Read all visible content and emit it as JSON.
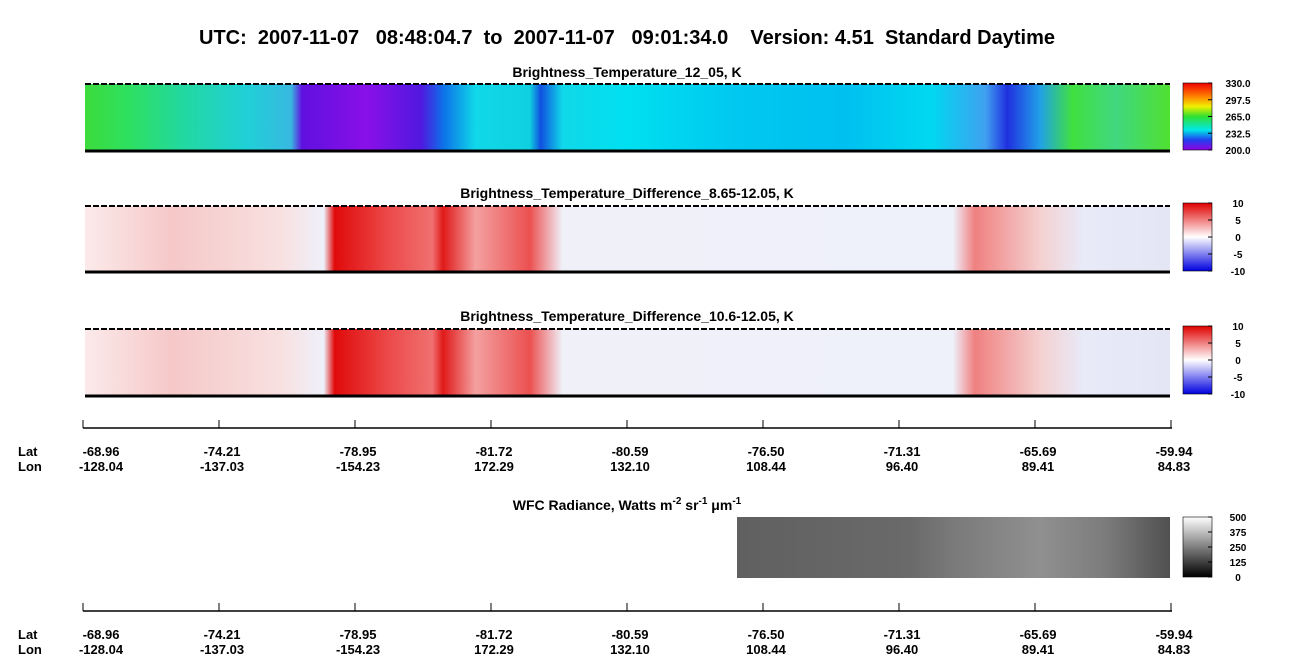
{
  "title": "UTC:  2007-11-07   08:48:04.7  to  2007-11-07   09:01:34.0    Version: 4.51  Standard Daytime",
  "panels": [
    {
      "title": "Brightness_Temperature_12_05, K",
      "clim": [
        200,
        330
      ],
      "cticks": [
        {
          "value": 330,
          "label": "330.0"
        },
        {
          "value": 297.5,
          "label": "297.5"
        },
        {
          "value": 265,
          "label": "265.0"
        },
        {
          "value": 232.5,
          "label": "232.5"
        },
        {
          "value": 200,
          "label": "200.0"
        }
      ]
    },
    {
      "title": "Brightness_Temperature_Difference_8.65-12.05, K",
      "clim": [
        -10,
        10
      ],
      "cticks": [
        10,
        5,
        0,
        -5,
        -10
      ]
    },
    {
      "title": "Brightness_Temperature_Difference_10.6-12.05, K",
      "clim": [
        -10,
        10
      ],
      "cticks": [
        10,
        5,
        0,
        -5,
        -10
      ]
    },
    {
      "title_parts": [
        "WFC Radiance, Watts m",
        "-2",
        " sr",
        "-1",
        " μm",
        "-1"
      ],
      "clim": [
        0,
        500
      ],
      "cticks": [
        500,
        375,
        250,
        125,
        0
      ]
    }
  ],
  "axes": [
    {
      "lat_label": "Lat",
      "lon_label": "Lon",
      "lat": [
        "-68.96",
        "-74.21",
        "-78.95",
        "-81.72",
        "-80.59",
        "-76.50",
        "-71.31",
        "-65.69",
        "-59.94"
      ],
      "lon": [
        "-128.04",
        "-137.03",
        "-154.23",
        "172.29",
        "132.10",
        "108.44",
        "96.40",
        "89.41",
        "84.83"
      ]
    },
    {
      "lat_label": "Lat",
      "lon_label": "Lon",
      "lat": [
        "-68.96",
        "-74.21",
        "-78.95",
        "-81.72",
        "-80.59",
        "-76.50",
        "-71.31",
        "-65.69",
        "-59.94"
      ],
      "lon": [
        "-128.04",
        "-137.03",
        "-154.23",
        "172.29",
        "132.10",
        "108.44",
        "96.40",
        "89.41",
        "84.83"
      ]
    }
  ]
}
